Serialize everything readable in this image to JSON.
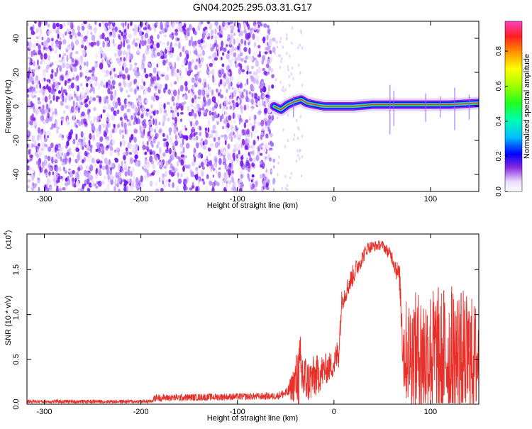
{
  "title": "GN04.2025.295.03.31.G17",
  "chart_data": [
    {
      "type": "heatmap",
      "xlabel": "Height of straight line (km)",
      "ylabel": "Frequency (Hz)",
      "xlim": [
        -318,
        150
      ],
      "ylim": [
        -50,
        50
      ],
      "xticks": [
        -300,
        -200,
        -100,
        0,
        100
      ],
      "yticks": [
        -40,
        -20,
        0,
        20,
        40
      ],
      "xtick_labels": [
        "-300",
        "-200",
        "-100",
        "0",
        "100"
      ],
      "ytick_labels": [
        "-40",
        "-20",
        "0",
        "20",
        "40"
      ],
      "colorbar": {
        "label": "Normalized spectral amplitude",
        "range": [
          0.0,
          0.97
        ],
        "ticks": [
          0.0,
          0.2,
          0.4,
          0.6,
          0.8
        ],
        "tick_labels": [
          "0.0",
          "0.2",
          "0.4",
          "0.6",
          "0.8"
        ]
      },
      "noise_region_x": [
        -318,
        -62
      ],
      "ridge": [
        {
          "x": -62,
          "y": 0
        },
        {
          "x": -55,
          "y": -2
        },
        {
          "x": -48,
          "y": 1
        },
        {
          "x": -40,
          "y": 3
        },
        {
          "x": -34,
          "y": 4
        },
        {
          "x": -28,
          "y": 2
        },
        {
          "x": -20,
          "y": 1
        },
        {
          "x": -10,
          "y": 0
        },
        {
          "x": 0,
          "y": 0
        },
        {
          "x": 20,
          "y": 0
        },
        {
          "x": 40,
          "y": 1
        },
        {
          "x": 60,
          "y": 1
        },
        {
          "x": 80,
          "y": 1
        },
        {
          "x": 100,
          "y": 1
        },
        {
          "x": 120,
          "y": 1
        },
        {
          "x": 150,
          "y": 2
        }
      ]
    },
    {
      "type": "line",
      "xlabel": "Height of straight line (km)",
      "ylabel": "SNR (10 * v/v)",
      "scale_label": "(x10",
      "scale_exp": "4",
      "scale_suffix": ")",
      "xlim": [
        -318,
        150
      ],
      "ylim": [
        0,
        1.9
      ],
      "xticks": [
        -300,
        -200,
        -100,
        0,
        100
      ],
      "yticks": [
        0.0,
        0.5,
        1.0,
        1.5
      ],
      "xtick_labels": [
        "-300",
        "-200",
        "-100",
        "0",
        "100"
      ],
      "ytick_labels": [
        "0.0",
        "0.5",
        "1.0",
        "1.5"
      ],
      "series": [
        {
          "color": "#e8302a",
          "envelope": [
            {
              "x": -318,
              "base": 0.03,
              "amp": 0.02
            },
            {
              "x": -190,
              "base": 0.03,
              "amp": 0.02
            },
            {
              "x": -185,
              "base": 0.07,
              "amp": 0.04
            },
            {
              "x": -60,
              "base": 0.09,
              "amp": 0.04
            },
            {
              "x": -48,
              "base": 0.13,
              "amp": 0.06
            },
            {
              "x": -42,
              "base": 0.22,
              "amp": 0.2
            },
            {
              "x": -35,
              "base": 0.35,
              "amp": 0.45
            },
            {
              "x": -28,
              "base": 0.25,
              "amp": 0.25
            },
            {
              "x": -20,
              "base": 0.3,
              "amp": 0.25
            },
            {
              "x": -10,
              "base": 0.38,
              "amp": 0.18
            },
            {
              "x": 0,
              "base": 0.45,
              "amp": 0.15
            },
            {
              "x": 5,
              "base": 0.6,
              "amp": 0.2
            },
            {
              "x": 8,
              "base": 1.15,
              "amp": 0.12
            },
            {
              "x": 20,
              "base": 1.45,
              "amp": 0.12
            },
            {
              "x": 35,
              "base": 1.75,
              "amp": 0.07
            },
            {
              "x": 50,
              "base": 1.78,
              "amp": 0.05
            },
            {
              "x": 60,
              "base": 1.65,
              "amp": 0.08
            },
            {
              "x": 68,
              "base": 1.4,
              "amp": 0.15
            },
            {
              "x": 72,
              "base": 0.6,
              "amp": 0.55
            },
            {
              "x": 90,
              "base": 0.55,
              "amp": 0.75
            },
            {
              "x": 120,
              "base": 0.55,
              "amp": 0.8
            },
            {
              "x": 140,
              "base": 0.5,
              "amp": 0.75
            },
            {
              "x": 150,
              "base": 0.5,
              "amp": 0.6
            }
          ]
        }
      ]
    }
  ]
}
